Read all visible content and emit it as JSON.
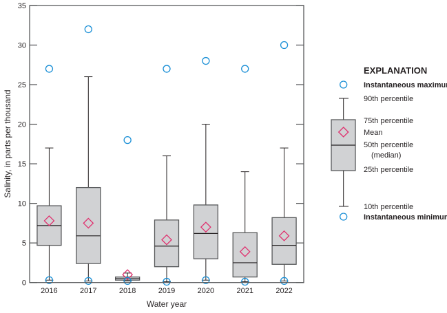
{
  "chart_data": {
    "type": "box",
    "xlabel": "Water year",
    "ylabel": "Salinity, in parts per thousand",
    "ylim": [
      0,
      35
    ],
    "yticks": [
      0,
      5,
      10,
      15,
      20,
      25,
      30,
      35
    ],
    "grid": false,
    "categories": [
      "2016",
      "2017",
      "2018",
      "2019",
      "2020",
      "2021",
      "2022"
    ],
    "series": [
      {
        "category": "2016",
        "min": 0.3,
        "p10": 0.3,
        "q1": 4.7,
        "median": 7.2,
        "mean": 7.8,
        "q3": 9.7,
        "p90": 17,
        "max": 27
      },
      {
        "category": "2017",
        "min": 0.2,
        "p10": 0.2,
        "q1": 2.4,
        "median": 5.9,
        "mean": 7.5,
        "q3": 12,
        "p90": 26,
        "max": 32
      },
      {
        "category": "2018",
        "min": 0.2,
        "p10": 0.2,
        "q1": 0.3,
        "median": 0.5,
        "mean": 1.0,
        "q3": 0.7,
        "p90": 1.2,
        "max": 18
      },
      {
        "category": "2019",
        "min": 0.1,
        "p10": 0.1,
        "q1": 2.0,
        "median": 4.6,
        "mean": 5.4,
        "q3": 7.9,
        "p90": 16,
        "max": 27
      },
      {
        "category": "2020",
        "min": 0.3,
        "p10": 0.3,
        "q1": 3.0,
        "median": 6.2,
        "mean": 7.0,
        "q3": 9.8,
        "p90": 20,
        "max": 28
      },
      {
        "category": "2021",
        "min": 0.1,
        "p10": 0.1,
        "q1": 0.7,
        "median": 2.5,
        "mean": 3.9,
        "q3": 6.3,
        "p90": 14,
        "max": 27
      },
      {
        "category": "2022",
        "min": 0.2,
        "p10": 0.2,
        "q1": 2.3,
        "median": 4.7,
        "mean": 5.9,
        "q3": 8.2,
        "p90": 17,
        "max": 30
      }
    ],
    "colors": {
      "extreme_circle": "#1a8fd6",
      "mean_diamond": "#e0306e",
      "box_fill": "#d1d2d4",
      "box_stroke": "#58595b"
    },
    "legend": {
      "placement": "right",
      "title": "EXPLANATION",
      "max_label": "Instantaneous maximum",
      "p90_label": "90th percentile",
      "q3_label": "75th percentile",
      "mean_label": "Mean",
      "median_label": "50th percentile",
      "median_sub": "(median)",
      "q1_label": "25th percentile",
      "p10_label": "10th percentile",
      "min_label": "Instantaneous minimum"
    }
  }
}
